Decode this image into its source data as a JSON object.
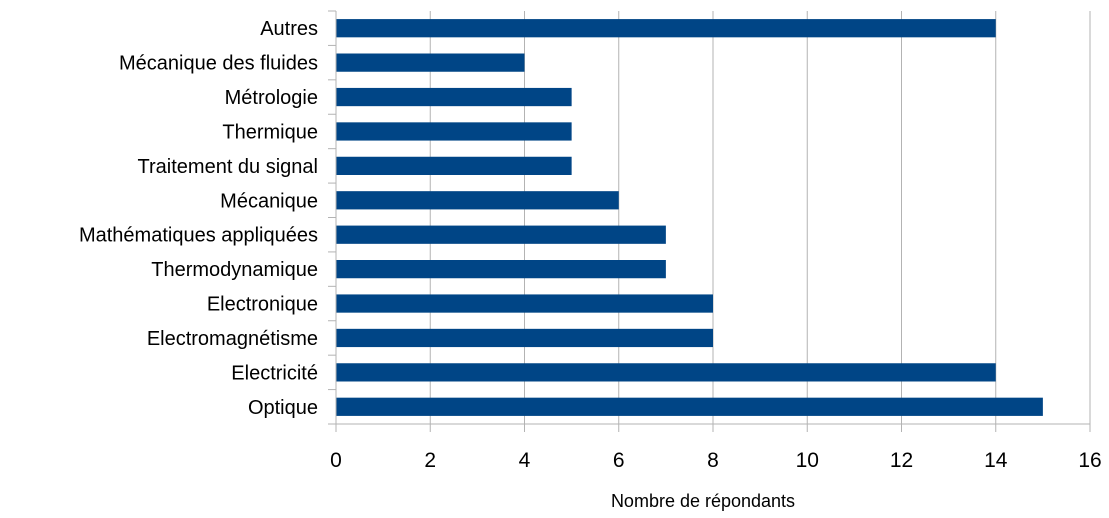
{
  "chart_data": {
    "type": "bar",
    "orientation": "horizontal",
    "categories": [
      "Autres",
      "Mécanique des fluides",
      "Métrologie",
      "Thermique",
      "Traitement du signal",
      "Mécanique",
      "Mathématiques appliquées",
      "Thermodynamique",
      "Electronique",
      "Electromagnétisme",
      "Electricité",
      "Optique"
    ],
    "values": [
      14,
      4,
      5,
      5,
      5,
      6,
      7,
      7,
      8,
      8,
      14,
      15
    ],
    "xlabel": "Nombre de répondants",
    "ylabel": "",
    "xlim": [
      0,
      16
    ],
    "xticks": [
      "0",
      "2",
      "4",
      "6",
      "8",
      "10",
      "12",
      "14",
      "16"
    ],
    "grid": "vertical",
    "legend": "none",
    "bar_color": "#004586",
    "grid_color": "#b3b3b3",
    "axis_color": "#b3b3b3"
  }
}
